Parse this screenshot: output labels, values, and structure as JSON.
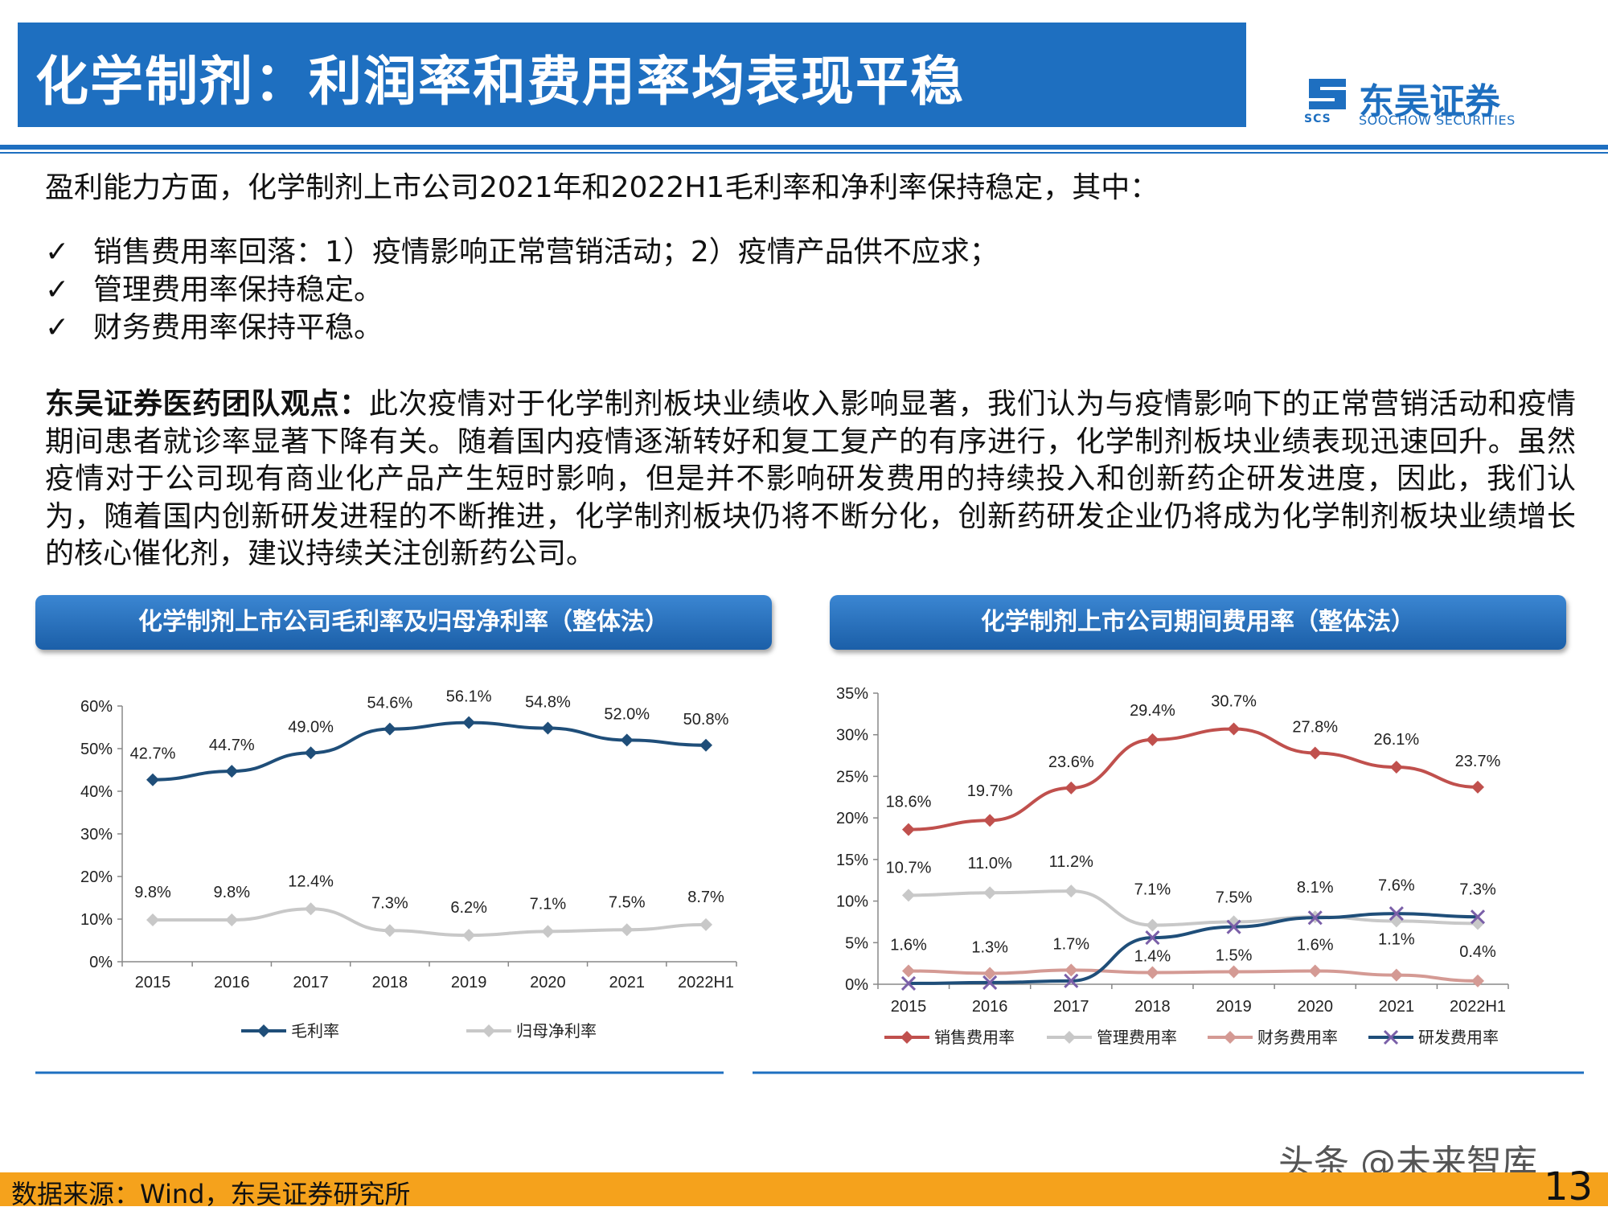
{
  "header": {
    "title": "化学制剂：利润率和费用率均表现平稳",
    "logo_text": "东吴证券",
    "logo_sub": "SOOCHOW SECURITIES",
    "logo_abbr": "SCS"
  },
  "body": {
    "intro": "盈利能力方面，化学制剂上市公司2021年和2022H1毛利率和净利率保持稳定，其中：",
    "check_mark": "✓",
    "bullets": [
      "销售费用率回落：1）疫情影响正常营销活动；2）疫情产品供不应求；",
      "管理费用率保持稳定。",
      "财务费用率保持平稳。"
    ],
    "view_label": "东吴证券医药团队观点：",
    "view_text": "此次疫情对于化学制剂板块业绩收入影响显著，我们认为与疫情影响下的正常营销活动和疫情期间患者就诊率显著下降有关。随着国内疫情逐渐转好和复工复产的有序进行，化学制剂板块业绩表现迅速回升。虽然疫情对于公司现有商业化产品产生短时影响，但是并不影响研发费用的持续投入和创新药企研发进度，因此，我们认为，随着国内创新研发进程的不断推进，化学制剂板块仍将不断分化，创新药研发企业仍将成为化学制剂板块业绩增长的核心催化剂，建议持续关注创新药公司。"
  },
  "footer": {
    "source": "数据来源：Wind，东吴证券研究所",
    "page": "13",
    "watermark": "头条 @未来智库"
  },
  "colors": {
    "brand_blue": "#1e6fc0",
    "footer_orange": "#f5a21c"
  },
  "chart_data": [
    {
      "type": "line",
      "title": "化学制剂上市公司毛利率及归母净利率（整体法）",
      "categories": [
        "2015",
        "2016",
        "2017",
        "2018",
        "2019",
        "2020",
        "2021",
        "2022H1"
      ],
      "yticks": [
        "0%",
        "10%",
        "20%",
        "30%",
        "40%",
        "50%",
        "60%"
      ],
      "ylim": [
        0,
        60
      ],
      "legend": "bottom",
      "series": [
        {
          "name": "毛利率",
          "color": "#1f4e79",
          "marker": "diamond",
          "values": [
            42.7,
            44.7,
            49.0,
            54.6,
            56.1,
            54.8,
            52.0,
            50.8
          ],
          "labels": [
            "42.7%",
            "44.7%",
            "49.0%",
            "54.6%",
            "56.1%",
            "54.8%",
            "52.0%",
            "50.8%"
          ]
        },
        {
          "name": "归母净利率",
          "color": "#c8c8c8",
          "marker": "diamond",
          "values": [
            9.8,
            9.8,
            12.4,
            7.3,
            6.2,
            7.1,
            7.5,
            8.7
          ],
          "labels": [
            "9.8%",
            "9.8%",
            "12.4%",
            "7.3%",
            "6.2%",
            "7.1%",
            "7.5%",
            "8.7%"
          ]
        }
      ]
    },
    {
      "type": "line",
      "title": "化学制剂上市公司期间费用率（整体法）",
      "categories": [
        "2015",
        "2016",
        "2017",
        "2018",
        "2019",
        "2020",
        "2021",
        "2022H1"
      ],
      "yticks": [
        "0%",
        "5%",
        "10%",
        "15%",
        "20%",
        "25%",
        "30%",
        "35%"
      ],
      "ylim": [
        0,
        35
      ],
      "legend": "bottom",
      "series": [
        {
          "name": "销售费用率",
          "color": "#c0504d",
          "marker": "diamond",
          "values": [
            18.6,
            19.7,
            23.6,
            29.4,
            30.7,
            27.8,
            26.1,
            23.7
          ],
          "labels": [
            "18.6%",
            "19.7%",
            "23.6%",
            "29.4%",
            "30.7%",
            "27.8%",
            "26.1%",
            "23.7%"
          ]
        },
        {
          "name": "管理费用率",
          "color": "#c8c8c8",
          "marker": "diamond",
          "values": [
            10.7,
            11.0,
            11.2,
            7.1,
            7.5,
            8.1,
            7.6,
            7.3
          ],
          "labels": [
            "10.7%",
            "11.0%",
            "11.2%",
            "7.1%",
            "7.5%",
            "8.1%",
            "7.6%",
            "7.3%"
          ]
        },
        {
          "name": "财务费用率",
          "color": "#d49a94",
          "marker": "diamond",
          "values": [
            1.6,
            1.3,
            1.7,
            1.4,
            1.5,
            1.6,
            1.1,
            0.4
          ],
          "labels": [
            "1.6%",
            "1.3%",
            "1.7%",
            "1.4%",
            "1.5%",
            "1.6%",
            "1.1%",
            "0.4%"
          ]
        },
        {
          "name": "研发费用率",
          "color": "#1f4e79",
          "marker": "x",
          "values": [
            0.1,
            0.2,
            0.4,
            5.6,
            6.9,
            8.0,
            8.5,
            8.1
          ],
          "labels": []
        }
      ]
    }
  ]
}
